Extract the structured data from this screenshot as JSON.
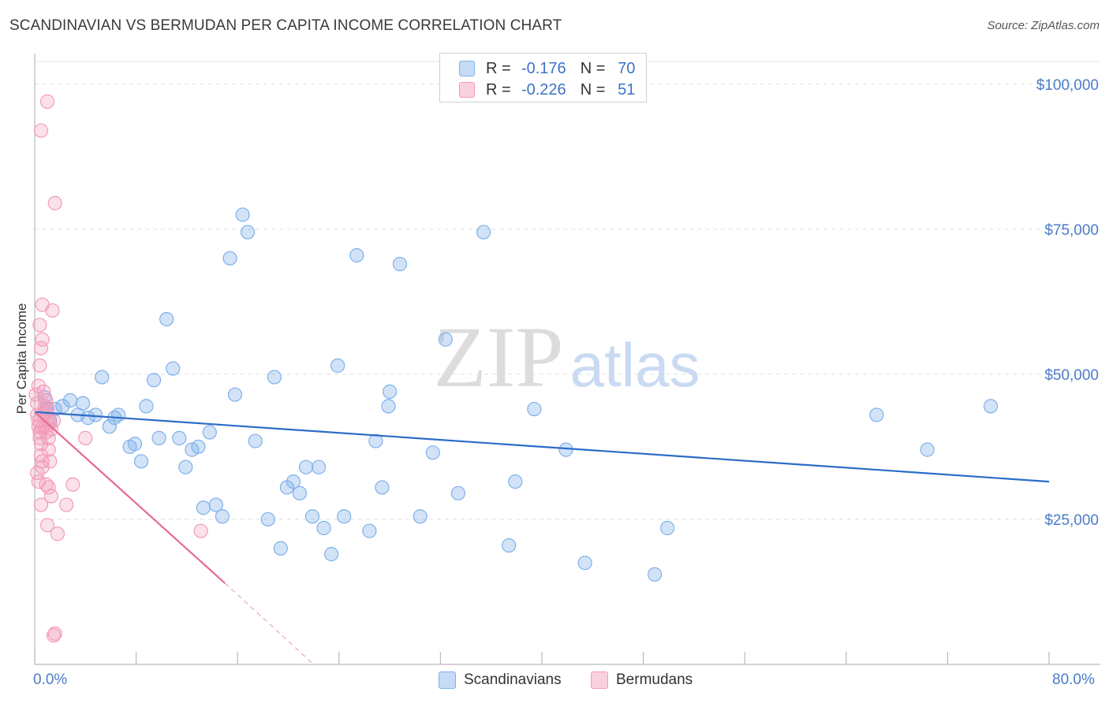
{
  "title": "SCANDINAVIAN VS BERMUDAN PER CAPITA INCOME CORRELATION CHART",
  "source": "Source: ZipAtlas.com",
  "watermark": {
    "zip": "ZIP",
    "atlas": "atlas"
  },
  "legend_top": {
    "rows": [
      {
        "r_label": "R =",
        "r_value": "-0.176",
        "n_label": "N =",
        "n_value": "70",
        "color": "#7fb0ea"
      },
      {
        "r_label": "R =",
        "r_value": "-0.226",
        "n_label": "N =",
        "n_value": "51",
        "color": "#f29bb8"
      }
    ]
  },
  "chart_data": {
    "type": "scatter",
    "title": "SCANDINAVIAN VS BERMUDAN PER CAPITA INCOME CORRELATION CHART",
    "xlabel": "",
    "ylabel": "Per Capita Income",
    "xlim": [
      0,
      80
    ],
    "ylim": [
      0,
      105000
    ],
    "x_tick_labels": [
      "0.0%",
      "80.0%"
    ],
    "y_ticks": [
      25000,
      50000,
      75000,
      100000
    ],
    "y_tick_labels": [
      "$25,000",
      "$50,000",
      "$75,000",
      "$100,000"
    ],
    "grid": true,
    "legend_placement": "bottom-center",
    "series": [
      {
        "name": "Scandinavians",
        "color": "#7fb0ea",
        "trend": {
          "x": [
            0,
            80
          ],
          "y": [
            43500,
            31500
          ]
        },
        "points": [
          [
            0.8,
            46000
          ],
          [
            0.9,
            44000
          ],
          [
            1.2,
            42000
          ],
          [
            1.6,
            44000
          ],
          [
            2.2,
            44500
          ],
          [
            2.8,
            45500
          ],
          [
            3.4,
            43000
          ],
          [
            3.8,
            45000
          ],
          [
            4.2,
            42500
          ],
          [
            4.8,
            43000
          ],
          [
            5.3,
            49500
          ],
          [
            5.9,
            41000
          ],
          [
            6.3,
            42500
          ],
          [
            6.6,
            43000
          ],
          [
            7.5,
            37500
          ],
          [
            7.9,
            38000
          ],
          [
            8.4,
            35000
          ],
          [
            8.8,
            44500
          ],
          [
            9.4,
            49000
          ],
          [
            9.8,
            39000
          ],
          [
            10.4,
            59500
          ],
          [
            10.9,
            51000
          ],
          [
            11.4,
            39000
          ],
          [
            11.9,
            34000
          ],
          [
            12.4,
            37000
          ],
          [
            12.9,
            37500
          ],
          [
            13.3,
            27000
          ],
          [
            13.8,
            40000
          ],
          [
            14.3,
            27500
          ],
          [
            14.8,
            25500
          ],
          [
            15.4,
            70000
          ],
          [
            15.8,
            46500
          ],
          [
            16.4,
            77500
          ],
          [
            16.8,
            74500
          ],
          [
            17.4,
            38500
          ],
          [
            18.4,
            25000
          ],
          [
            18.9,
            49500
          ],
          [
            19.4,
            20000
          ],
          [
            19.9,
            30500
          ],
          [
            20.4,
            31500
          ],
          [
            20.9,
            29500
          ],
          [
            21.4,
            34000
          ],
          [
            21.9,
            25500
          ],
          [
            22.4,
            34000
          ],
          [
            22.8,
            23500
          ],
          [
            23.4,
            19000
          ],
          [
            23.9,
            51500
          ],
          [
            24.4,
            25500
          ],
          [
            25.4,
            70500
          ],
          [
            26.4,
            23000
          ],
          [
            26.9,
            38500
          ],
          [
            27.4,
            30500
          ],
          [
            27.9,
            44500
          ],
          [
            28.0,
            47000
          ],
          [
            28.8,
            69000
          ],
          [
            30.4,
            25500
          ],
          [
            31.4,
            36500
          ],
          [
            32.4,
            56000
          ],
          [
            33.4,
            29500
          ],
          [
            35.4,
            74500
          ],
          [
            37.4,
            20500
          ],
          [
            37.9,
            31500
          ],
          [
            39.4,
            44000
          ],
          [
            41.9,
            37000
          ],
          [
            43.4,
            17500
          ],
          [
            48.9,
            15500
          ],
          [
            49.9,
            23500
          ],
          [
            66.4,
            43000
          ],
          [
            70.4,
            37000
          ],
          [
            75.4,
            44500
          ]
        ]
      },
      {
        "name": "Bermudans",
        "color": "#f29bb8",
        "trend": {
          "x": [
            0,
            15
          ],
          "y": [
            43500,
            14000
          ]
        },
        "trend_extended": {
          "x": [
            15,
            22
          ],
          "y": [
            14000,
            0
          ]
        },
        "points": [
          [
            0.1,
            46500
          ],
          [
            0.2,
            45000
          ],
          [
            0.2,
            43000
          ],
          [
            0.3,
            42000
          ],
          [
            0.3,
            41000
          ],
          [
            0.4,
            40000
          ],
          [
            0.4,
            39000
          ],
          [
            0.5,
            38000
          ],
          [
            0.5,
            36000
          ],
          [
            0.6,
            35000
          ],
          [
            0.6,
            34000
          ],
          [
            0.2,
            33000
          ],
          [
            0.3,
            31500
          ],
          [
            0.5,
            27500
          ],
          [
            0.4,
            51500
          ],
          [
            0.5,
            54500
          ],
          [
            0.6,
            56000
          ],
          [
            0.4,
            58500
          ],
          [
            0.6,
            62000
          ],
          [
            0.3,
            48000
          ],
          [
            0.7,
            47000
          ],
          [
            0.8,
            44500
          ],
          [
            0.9,
            43500
          ],
          [
            1.0,
            42000
          ],
          [
            0.8,
            41000
          ],
          [
            0.9,
            40000
          ],
          [
            1.1,
            39000
          ],
          [
            1.2,
            41500
          ],
          [
            1.3,
            40500
          ],
          [
            1.1,
            37000
          ],
          [
            1.2,
            35000
          ],
          [
            0.9,
            31000
          ],
          [
            1.1,
            30500
          ],
          [
            1.3,
            29000
          ],
          [
            1.0,
            24000
          ],
          [
            1.4,
            61000
          ],
          [
            1.5,
            42000
          ],
          [
            1.6,
            79500
          ],
          [
            1.8,
            22500
          ],
          [
            0.5,
            92000
          ],
          [
            1.0,
            97000
          ],
          [
            2.5,
            27500
          ],
          [
            3.0,
            31000
          ],
          [
            4.0,
            39000
          ],
          [
            13.1,
            23000
          ],
          [
            1.5,
            5000
          ],
          [
            1.6,
            5300
          ],
          [
            0.7,
            43000
          ],
          [
            0.9,
            45500
          ],
          [
            0.6,
            40800
          ],
          [
            1.0,
            44200
          ]
        ]
      }
    ]
  }
}
